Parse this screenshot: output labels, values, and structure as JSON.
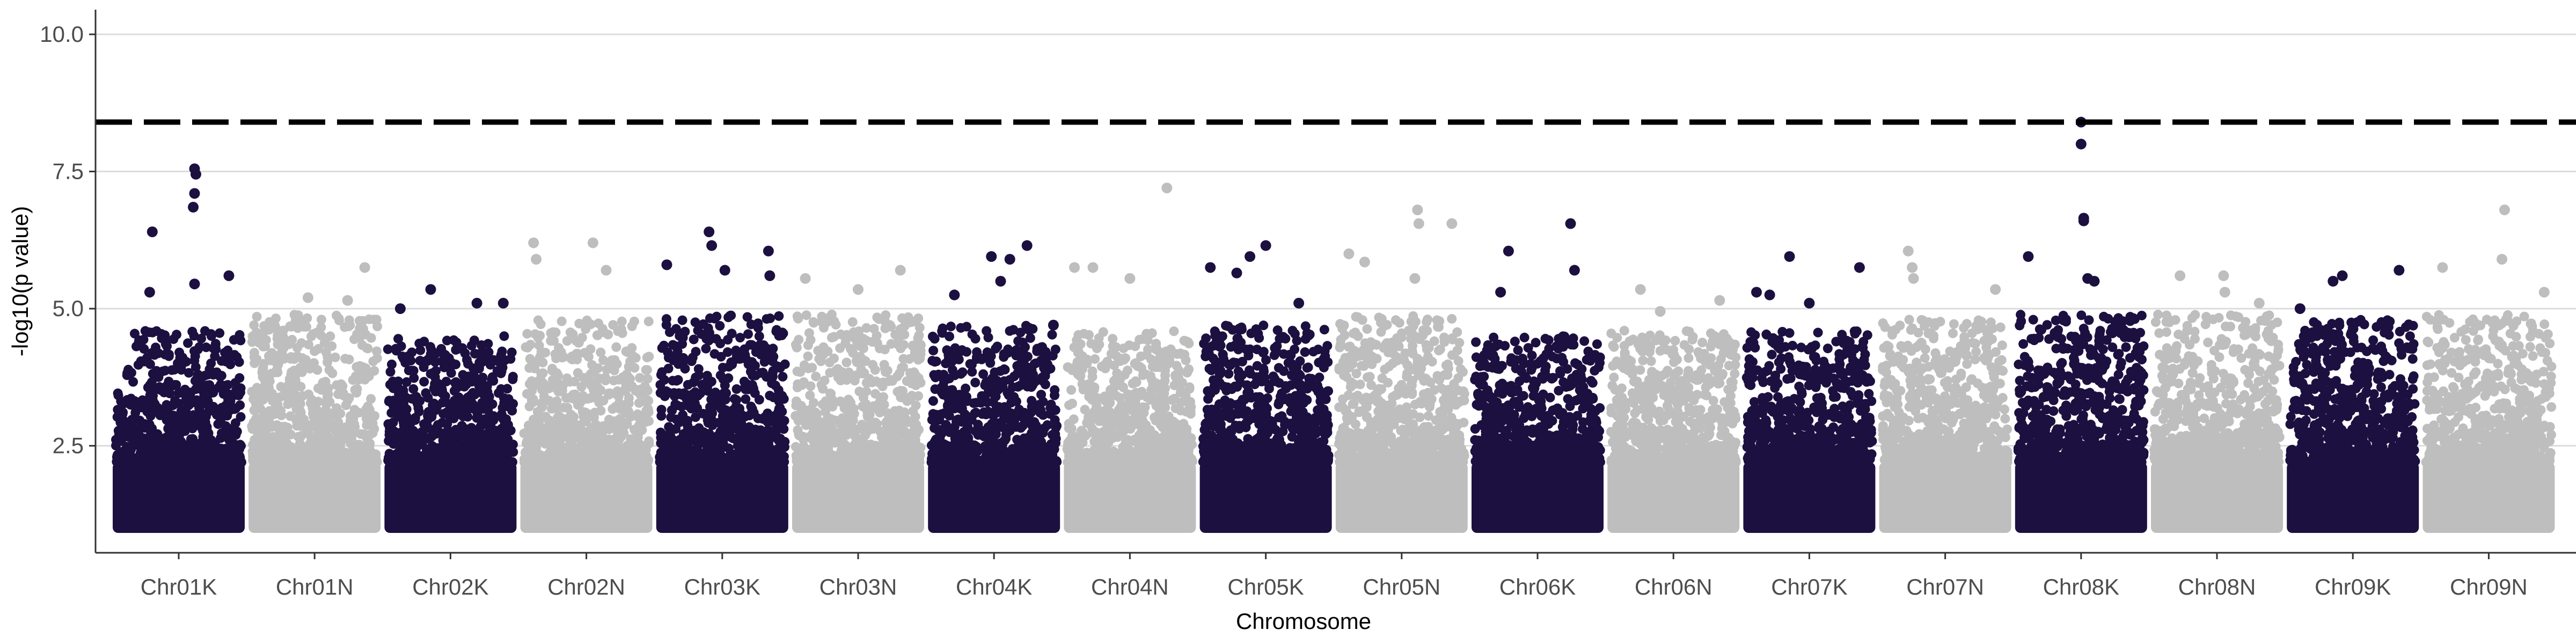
{
  "chart_data": {
    "type": "scatter",
    "subtype": "manhattan",
    "xlabel": "Chromosome",
    "ylabel": "-log10(p value)",
    "ylim": [
      0.55,
      10.45
    ],
    "yticks": [
      2.5,
      5.0,
      7.5,
      10.0
    ],
    "ytick_labels": [
      "2.5",
      "5.0",
      "7.5",
      "10.0"
    ],
    "threshold": 8.4,
    "threshold_style": "dashed",
    "grid": "horizontal-major",
    "legend": "none",
    "colors": {
      "K": "#1c1040",
      "N": "#bebebe",
      "threshold": "#000000",
      "grid": "#dcdcdc",
      "axis": "#333333"
    },
    "categories": [
      "Chr01K",
      "Chr01N",
      "Chr02K",
      "Chr02N",
      "Chr03K",
      "Chr03N",
      "Chr04K",
      "Chr04N",
      "Chr05K",
      "Chr05N",
      "Chr06K",
      "Chr06N",
      "Chr07K",
      "Chr07N",
      "Chr08K",
      "Chr08N",
      "Chr09K",
      "Chr09N"
    ],
    "series": [
      {
        "category": "Chr01K",
        "top_points": [
          [
            0.3,
            6.4
          ],
          [
            0.28,
            5.3
          ],
          [
            0.62,
            7.55
          ],
          [
            0.63,
            7.45
          ],
          [
            0.62,
            7.1
          ],
          [
            0.61,
            6.85
          ],
          [
            0.88,
            5.6
          ],
          [
            0.62,
            5.45
          ]
        ],
        "baseline_max": 4.6
      },
      {
        "category": "Chr01N",
        "top_points": [
          [
            0.88,
            5.75
          ],
          [
            0.45,
            5.2
          ],
          [
            0.75,
            5.15
          ]
        ],
        "baseline_max": 4.9
      },
      {
        "category": "Chr02K",
        "top_points": [
          [
            0.12,
            5.0
          ],
          [
            0.35,
            5.35
          ],
          [
            0.7,
            5.1
          ],
          [
            0.9,
            5.1
          ]
        ],
        "baseline_max": 4.5
      },
      {
        "category": "Chr02N",
        "top_points": [
          [
            0.1,
            6.2
          ],
          [
            0.55,
            6.2
          ],
          [
            0.65,
            5.7
          ],
          [
            0.12,
            5.9
          ]
        ],
        "baseline_max": 4.8
      },
      {
        "category": "Chr03K",
        "top_points": [
          [
            0.08,
            5.8
          ],
          [
            0.4,
            6.4
          ],
          [
            0.42,
            6.15
          ],
          [
            0.85,
            6.05
          ],
          [
            0.52,
            5.7
          ],
          [
            0.86,
            5.6
          ]
        ],
        "baseline_max": 4.9
      },
      {
        "category": "Chr03N",
        "top_points": [
          [
            0.1,
            5.55
          ],
          [
            0.82,
            5.7
          ],
          [
            0.5,
            5.35
          ]
        ],
        "baseline_max": 4.9
      },
      {
        "category": "Chr04K",
        "top_points": [
          [
            0.48,
            5.95
          ],
          [
            0.62,
            5.9
          ],
          [
            0.75,
            6.15
          ],
          [
            0.55,
            5.5
          ],
          [
            0.2,
            5.25
          ],
          [
            0.95,
            4.7
          ]
        ],
        "baseline_max": 4.7
      },
      {
        "category": "Chr04N",
        "top_points": [
          [
            0.08,
            5.75
          ],
          [
            0.78,
            7.2
          ],
          [
            0.22,
            5.75
          ],
          [
            0.5,
            5.55
          ]
        ],
        "baseline_max": 4.6
      },
      {
        "category": "Chr05K",
        "top_points": [
          [
            0.08,
            5.75
          ],
          [
            0.28,
            5.65
          ],
          [
            0.38,
            5.95
          ],
          [
            0.5,
            6.15
          ],
          [
            0.75,
            5.1
          ]
        ],
        "baseline_max": 4.7
      },
      {
        "category": "Chr05N",
        "top_points": [
          [
            0.1,
            6.0
          ],
          [
            0.22,
            5.85
          ],
          [
            0.62,
            6.8
          ],
          [
            0.63,
            6.55
          ],
          [
            0.88,
            6.55
          ],
          [
            0.6,
            5.55
          ]
        ],
        "baseline_max": 4.9
      },
      {
        "category": "Chr06K",
        "top_points": [
          [
            0.28,
            6.05
          ],
          [
            0.75,
            6.55
          ],
          [
            0.78,
            5.7
          ],
          [
            0.22,
            5.3
          ]
        ],
        "baseline_max": 4.5
      },
      {
        "category": "Chr06N",
        "top_points": [
          [
            0.25,
            5.35
          ],
          [
            0.85,
            5.15
          ],
          [
            0.4,
            4.95
          ]
        ],
        "baseline_max": 4.6
      },
      {
        "category": "Chr07K",
        "top_points": [
          [
            0.1,
            5.3
          ],
          [
            0.2,
            5.25
          ],
          [
            0.35,
            5.95
          ],
          [
            0.88,
            5.75
          ],
          [
            0.5,
            5.1
          ]
        ],
        "baseline_max": 4.6
      },
      {
        "category": "Chr07N",
        "top_points": [
          [
            0.22,
            6.05
          ],
          [
            0.25,
            5.75
          ],
          [
            0.26,
            5.55
          ],
          [
            0.88,
            5.35
          ]
        ],
        "baseline_max": 4.8
      },
      {
        "category": "Chr08K",
        "top_points": [
          [
            0.1,
            5.95
          ],
          [
            0.5,
            8.4
          ],
          [
            0.5,
            8.0
          ],
          [
            0.52,
            6.65
          ],
          [
            0.52,
            6.6
          ],
          [
            0.55,
            5.55
          ],
          [
            0.6,
            5.5
          ]
        ],
        "baseline_max": 4.9
      },
      {
        "category": "Chr08N",
        "top_points": [
          [
            0.22,
            5.6
          ],
          [
            0.55,
            5.6
          ],
          [
            0.82,
            5.1
          ],
          [
            0.56,
            5.3
          ]
        ],
        "baseline_max": 4.9
      },
      {
        "category": "Chr09K",
        "top_points": [
          [
            0.35,
            5.5
          ],
          [
            0.42,
            5.6
          ],
          [
            0.85,
            5.7
          ],
          [
            0.1,
            5.0
          ]
        ],
        "baseline_max": 4.8
      },
      {
        "category": "Chr09N",
        "top_points": [
          [
            0.15,
            5.75
          ],
          [
            0.62,
            6.8
          ],
          [
            0.6,
            5.9
          ],
          [
            0.92,
            5.3
          ]
        ],
        "baseline_max": 4.9
      }
    ]
  }
}
